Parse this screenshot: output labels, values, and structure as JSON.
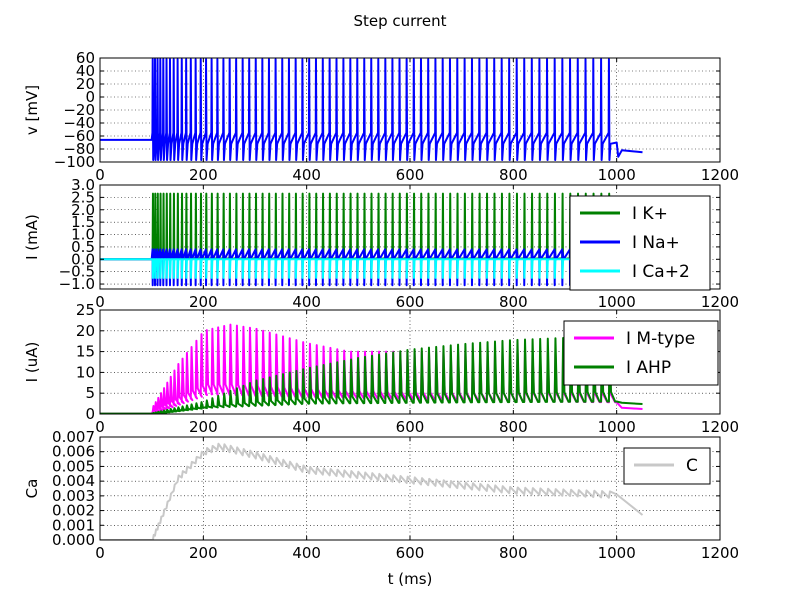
{
  "figure_title": "Step current",
  "chart_data": [
    {
      "type": "line",
      "ylabel": "v [mV]",
      "xlim": [
        0,
        1200
      ],
      "ylim": [
        -100,
        60
      ],
      "xticks": [
        0,
        200,
        400,
        600,
        800,
        1000,
        1200
      ],
      "yticks": [
        -100,
        -80,
        -60,
        -40,
        -20,
        0,
        20,
        40,
        60
      ],
      "ytick_labels": [
        "−100",
        "−80",
        "−60",
        "−40",
        "−20",
        "0",
        "20",
        "40",
        "60"
      ],
      "grid": true,
      "series": [
        {
          "color": "#0000ff",
          "rest": -66,
          "spike_peak": 58,
          "trough": -97,
          "stim_start": 100,
          "stim_end": 1000,
          "after_rest": -85,
          "t_end": 1050
        }
      ]
    },
    {
      "type": "line",
      "ylabel": "I  (mA)",
      "xlim": [
        0,
        1200
      ],
      "ylim": [
        -1.2,
        3.0
      ],
      "xticks": [
        0,
        200,
        400,
        600,
        800,
        1000,
        1200
      ],
      "yticks": [
        -1.0,
        -0.5,
        0.0,
        0.5,
        1.0,
        1.5,
        2.0,
        2.5,
        3.0
      ],
      "ytick_labels": [
        "−1.0",
        "−0.5",
        "0.0",
        "0.5",
        "1.0",
        "1.5",
        "2.0",
        "2.5",
        "3.0"
      ],
      "grid": true,
      "legend": "top-right",
      "series": [
        {
          "name": "I K+",
          "color": "#008000",
          "base": 0.0,
          "peak": 2.65,
          "t_end": 1000
        },
        {
          "name": "I Na+",
          "color": "#0000ff",
          "base": 0.0,
          "peak": 0.4,
          "min": -1.05,
          "t_end": 1000
        },
        {
          "name": "I Ca+2",
          "color": "#00ffff",
          "base": 0.0,
          "min": -0.75,
          "t_end": 900
        }
      ]
    },
    {
      "type": "line",
      "ylabel": "I  (uA)",
      "xlim": [
        0,
        1200
      ],
      "ylim": [
        0,
        25
      ],
      "xticks": [
        0,
        200,
        400,
        600,
        800,
        1000,
        1200
      ],
      "yticks": [
        0,
        5,
        10,
        15,
        20,
        25
      ],
      "ytick_labels": [
        "0",
        "5",
        "10",
        "15",
        "20",
        "25"
      ],
      "grid": true,
      "legend": "top-right",
      "series": [
        {
          "name": "I M-type",
          "color": "#ff00ff",
          "peak_envelope": [
            [
              100,
              1.5
            ],
            [
              150,
              12
            ],
            [
              200,
              20
            ],
            [
              250,
              21.5
            ],
            [
              300,
              20.5
            ],
            [
              400,
              17
            ],
            [
              480,
              15
            ]
          ],
          "base_envelope": [
            [
              100,
              0.4
            ],
            [
              200,
              4.8
            ],
            [
              300,
              4.3
            ],
            [
              600,
              3.6
            ],
            [
              800,
              3.1
            ],
            [
              1000,
              2.8
            ]
          ],
          "t_end": 1050,
          "end_value": 1.2
        },
        {
          "name": "I AHP",
          "color": "#008000",
          "peak_envelope": [
            [
              100,
              0.2
            ],
            [
              200,
              3
            ],
            [
              300,
              8
            ],
            [
              400,
              11
            ],
            [
              500,
              13.5
            ],
            [
              600,
              15.5
            ],
            [
              700,
              16.8
            ],
            [
              800,
              17.8
            ],
            [
              900,
              18.3
            ],
            [
              1000,
              18.5
            ]
          ],
          "base_envelope": [
            [
              100,
              0.1
            ],
            [
              200,
              1.5
            ],
            [
              400,
              2.5
            ],
            [
              700,
              2.8
            ],
            [
              1000,
              3.0
            ]
          ],
          "t_end": 1050,
          "end_value": 2.4
        }
      ]
    },
    {
      "type": "line",
      "ylabel": "Ca",
      "xlabel": "t (ms)",
      "xlim": [
        0,
        1200
      ],
      "ylim": [
        0,
        0.007
      ],
      "xticks": [
        0,
        200,
        400,
        600,
        800,
        1000,
        1200
      ],
      "yticks": [
        0,
        0.001,
        0.002,
        0.003,
        0.004,
        0.005,
        0.006,
        0.007
      ],
      "ytick_labels": [
        "0.000",
        "0.001",
        "0.002",
        "0.003",
        "0.004",
        "0.005",
        "0.006",
        "0.007"
      ],
      "grid": true,
      "legend": "top-right",
      "series": [
        {
          "name": "C",
          "color": "#c8c8c8",
          "envelope": [
            [
              100,
              0
            ],
            [
              150,
              0.0042
            ],
            [
              200,
              0.006
            ],
            [
              230,
              0.0064
            ],
            [
              300,
              0.0058
            ],
            [
              400,
              0.0048
            ],
            [
              600,
              0.0041
            ],
            [
              800,
              0.0034
            ],
            [
              1000,
              0.0031
            ],
            [
              1050,
              0.0017
            ]
          ]
        }
      ]
    }
  ]
}
